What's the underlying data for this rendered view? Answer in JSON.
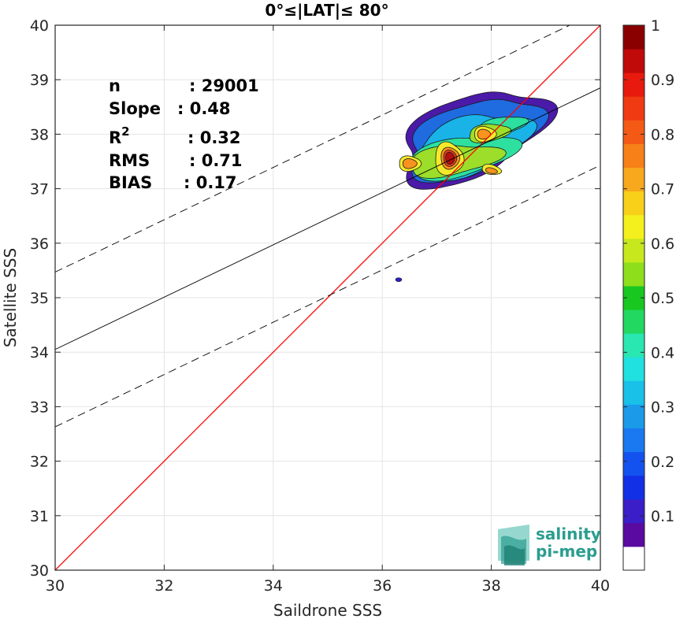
{
  "chart_data": {
    "type": "contour-density-scatter",
    "title": "0°≤|LAT|≤ 80°",
    "xlabel": "Saildrone SSS",
    "ylabel": "Satellite SSS",
    "xlim": [
      30,
      40
    ],
    "ylim": [
      30,
      40
    ],
    "xticks": [
      "30",
      "32",
      "34",
      "36",
      "38",
      "40"
    ],
    "yticks": [
      "30",
      "31",
      "32",
      "33",
      "34",
      "35",
      "36",
      "37",
      "38",
      "39",
      "40"
    ],
    "grid": true,
    "stats": [
      {
        "label": "n",
        "value": ": 29001"
      },
      {
        "label": "Slope",
        "value": ": 0.48"
      },
      {
        "label": "R",
        "sup": "2",
        "value": ": 0.32"
      },
      {
        "label": "RMS",
        "value": ": 0.71"
      },
      {
        "label": "BIAS",
        "value": ": 0.17"
      }
    ],
    "lines": {
      "one_to_one": {
        "color": "#ff0000",
        "from": [
          30,
          30
        ],
        "to": [
          40,
          40
        ]
      },
      "regression": {
        "color": "#000000",
        "style": "solid",
        "from": [
          30,
          34.05
        ],
        "to": [
          40,
          38.85
        ]
      },
      "upper_bound": {
        "color": "#000000",
        "style": "dashed",
        "from": [
          30,
          35.47
        ],
        "to": [
          40,
          40.27
        ]
      },
      "lower_bound": {
        "color": "#000000",
        "style": "dashed",
        "from": [
          30,
          32.63
        ],
        "to": [
          40,
          37.43
        ]
      }
    },
    "contour_levels": [
      {
        "level": 0.05,
        "color": "#4b1aa8"
      },
      {
        "level": 0.25,
        "color": "#1f6be0"
      },
      {
        "level": 0.35,
        "color": "#19b3e8"
      },
      {
        "level": 0.45,
        "color": "#2de0a0"
      },
      {
        "level": 0.55,
        "color": "#9cde2a"
      },
      {
        "level": 0.65,
        "color": "#f4ea2a"
      },
      {
        "level": 0.75,
        "color": "#f7931e"
      },
      {
        "level": 0.85,
        "color": "#e8401a"
      },
      {
        "level": 0.95,
        "color": "#b3100f"
      }
    ],
    "density_peaks": [
      {
        "x": 37.25,
        "y": 37.55,
        "level": 0.95
      },
      {
        "x": 36.5,
        "y": 37.45,
        "level": 0.75
      },
      {
        "x": 37.85,
        "y": 38.0,
        "level": 0.75
      },
      {
        "x": 38.0,
        "y": 37.35,
        "level": 0.75
      }
    ],
    "outlier": {
      "x": 36.3,
      "y": 35.33,
      "color": "#2b1fc7"
    },
    "colorbar": {
      "ticks": [
        "0.1",
        "0.2",
        "0.3",
        "0.4",
        "0.5",
        "0.6",
        "0.7",
        "0.8",
        "0.9",
        "1"
      ],
      "colors": [
        "#ffffff",
        "#5a0aa0",
        "#3b1ec8",
        "#1230e6",
        "#1452f0",
        "#1a78f0",
        "#1a9ae8",
        "#19c0e8",
        "#20e0e0",
        "#2ae6b0",
        "#22d860",
        "#18c820",
        "#8ede1c",
        "#c8e81e",
        "#f4f01e",
        "#f8d01a",
        "#f7a81c",
        "#f78018",
        "#f45a16",
        "#ef3a12",
        "#e81a0e",
        "#c00a0a",
        "#8a0000"
      ]
    },
    "logo": {
      "line1": "salinity",
      "line2": "pi-mep"
    }
  }
}
